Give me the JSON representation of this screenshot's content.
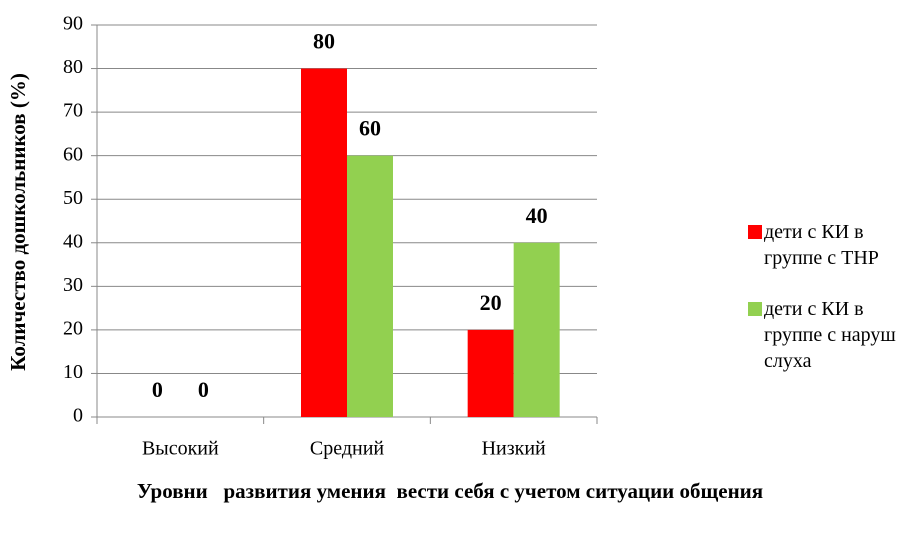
{
  "chart_data": {
    "type": "bar",
    "categories": [
      "Высокий",
      "Средний",
      "Низкий"
    ],
    "series": [
      {
        "name": "дети с КИ в группе с ТНР",
        "color": "#ff0000",
        "values": [
          0,
          80,
          20
        ]
      },
      {
        "name": "дети с КИ в группе с наруш слуха",
        "color": "#92d050",
        "values": [
          0,
          60,
          40
        ]
      }
    ],
    "ylabel": "Количество дошкольников (%)",
    "xlabel": "Уровни   развития умения  вести себя с учетом ситуации общения",
    "ylim": [
      0,
      90
    ],
    "yticks": [
      0,
      10,
      20,
      30,
      40,
      50,
      60,
      70,
      80,
      90
    ],
    "grid": true,
    "legend": "right"
  }
}
